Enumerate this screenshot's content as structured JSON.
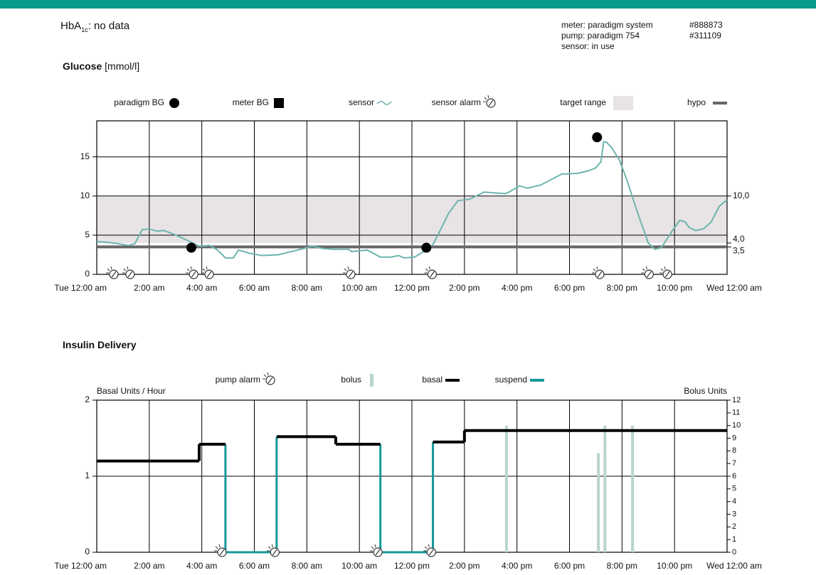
{
  "header": {
    "hba1c_main": "HbA",
    "hba1c_sub": "1c",
    "hba1c_value": ": no data",
    "devices": [
      {
        "label": "meter: paradigm system",
        "id": "#888873"
      },
      {
        "label": "pump: paradigm 754",
        "id": "#311109"
      },
      {
        "label": "sensor: in use"
      }
    ]
  },
  "chart_data": [
    {
      "type": "glucose",
      "title": "Glucose",
      "unit": "[mmol/l]",
      "grid": true,
      "xlim": [
        0,
        24
      ],
      "xticks": [
        {
          "value": 0,
          "label": "Tue 12:00 am"
        },
        {
          "value": 2,
          "label": "2:00 am"
        },
        {
          "value": 4,
          "label": "4:00 am"
        },
        {
          "value": 6,
          "label": "6:00 am"
        },
        {
          "value": 8,
          "label": "8:00 am"
        },
        {
          "value": 10,
          "label": "10:00 am"
        },
        {
          "value": 12,
          "label": "12:00 pm"
        },
        {
          "value": 14,
          "label": "2:00 pm"
        },
        {
          "value": 16,
          "label": "4:00 pm"
        },
        {
          "value": 18,
          "label": "6:00 pm"
        },
        {
          "value": 20,
          "label": "8:00 pm"
        },
        {
          "value": 22,
          "label": "10:00 pm"
        },
        {
          "value": 24,
          "label": "Wed 12:00 am"
        }
      ],
      "ylim": [
        0,
        19.6
      ],
      "yticks": [
        0,
        5,
        10,
        15
      ],
      "y2lim": [
        0,
        19.6
      ],
      "y2ticks": [
        {
          "value": 10,
          "label": "10,0"
        },
        {
          "value": 4,
          "label": "4,0"
        },
        {
          "value": 3.5,
          "label": "3,5"
        }
      ],
      "target_range": {
        "name": "target range",
        "range": [
          4,
          10
        ],
        "color": "#e8e3e5"
      },
      "hypo": {
        "name": "hypo",
        "value": 3.5,
        "color": "#666666"
      },
      "series": [
        {
          "name": "paradigm BG",
          "color": "#000000",
          "x": [
            3.6,
            12.55,
            19.05
          ],
          "values": [
            3.4,
            3.4,
            17.5
          ]
        },
        {
          "name": "meter BG",
          "color": "#000000",
          "x": [],
          "values": []
        },
        {
          "name": "sensor",
          "color": "#6cb5ad",
          "x": [
            0,
            0.65,
            1.2,
            1.45,
            1.73,
            2,
            2.3,
            2.55,
            2.95,
            3.35,
            3.9,
            4.3,
            4.6,
            4.9,
            5.2,
            5.4,
            5.8,
            6.3,
            6.9,
            7.4,
            8,
            8.2,
            8.6,
            9,
            9.6,
            9.7,
            10.3,
            10.8,
            11.2,
            11.5,
            11.7,
            12.1,
            12.4,
            12.8,
            13,
            13.4,
            13.75,
            14.2,
            14.75,
            15.55,
            15.7,
            16.1,
            16.4,
            16.9,
            17.7,
            18.3,
            18.7,
            19,
            19.2,
            19.3,
            19.4,
            19.6,
            19.9,
            20.2,
            20.6,
            21,
            21.25,
            21.5,
            21.9,
            22.2,
            22.4,
            22.55,
            22.8,
            23.1,
            23.4,
            23.7,
            24
          ],
          "values": [
            4.2,
            4.0,
            3.7,
            3.9,
            5.7,
            5.8,
            5.5,
            5.6,
            5.1,
            4.5,
            3.6,
            3.7,
            3.1,
            2.1,
            2.1,
            3.1,
            2.7,
            2.4,
            2.5,
            2.9,
            3.4,
            3.6,
            3.3,
            3.2,
            3.2,
            2.9,
            3.1,
            2.2,
            2.2,
            2.4,
            2.1,
            2.2,
            2.8,
            3.8,
            5.1,
            7.8,
            9.4,
            9.6,
            10.5,
            10.3,
            10.5,
            11.3,
            11.0,
            11.4,
            12.8,
            12.9,
            13.2,
            13.6,
            14.4,
            16.9,
            16.9,
            16.2,
            14.6,
            11.9,
            7.8,
            4.0,
            3.2,
            3.4,
            5.5,
            6.9,
            6.7,
            6.0,
            5.6,
            5.8,
            6.7,
            8.7,
            9.5
          ]
        },
        {
          "name": "sensor alarm",
          "color": "#333333",
          "x": [
            0.65,
            1.27,
            3.69,
            4.28,
            9.67,
            12.77,
            19.15,
            21.03,
            21.73
          ]
        }
      ]
    },
    {
      "type": "insulin",
      "title": "Insulin Delivery",
      "ylabel": "Basal Units / Hour",
      "y2label": "Bolus Units",
      "grid": true,
      "xlim": [
        0,
        24
      ],
      "xticks": [
        {
          "value": 0,
          "label": "Tue 12:00 am"
        },
        {
          "value": 2,
          "label": "2:00 am"
        },
        {
          "value": 4,
          "label": "4:00 am"
        },
        {
          "value": 6,
          "label": "6:00 am"
        },
        {
          "value": 8,
          "label": "8:00 am"
        },
        {
          "value": 10,
          "label": "10:00 am"
        },
        {
          "value": 12,
          "label": "12:00 pm"
        },
        {
          "value": 14,
          "label": "2:00 pm"
        },
        {
          "value": 16,
          "label": "4:00 pm"
        },
        {
          "value": 18,
          "label": "6:00 pm"
        },
        {
          "value": 20,
          "label": "8:00 pm"
        },
        {
          "value": 22,
          "label": "10:00 pm"
        },
        {
          "value": 24,
          "label": "Wed 12:00 am"
        }
      ],
      "ylim": [
        0,
        2
      ],
      "yticks": [
        0,
        1,
        2
      ],
      "y2lim": [
        0,
        12
      ],
      "y2ticks": [
        0,
        1,
        2,
        3,
        4,
        5,
        6,
        7,
        8,
        9,
        10,
        11,
        12
      ],
      "series": [
        {
          "name": "pump alarm",
          "color": "#333333",
          "x": [
            4.77,
            6.78,
            10.7,
            12.74
          ]
        },
        {
          "name": "bolus",
          "color": "#b9d4cf",
          "axis": "y2",
          "x": [
            15.6,
            19.1,
            19.35,
            20.4
          ],
          "values": [
            10,
            7.8,
            10,
            10
          ]
        },
        {
          "name": "basal",
          "color": "#000000",
          "x_start": [
            0,
            3.9,
            6.85,
            9.1,
            12.8,
            14
          ],
          "x_end": [
            3.9,
            4.9,
            9.1,
            10.8,
            14,
            24
          ],
          "values": [
            1.2,
            1.42,
            1.52,
            1.42,
            1.45,
            1.6
          ]
        },
        {
          "name": "suspend",
          "color": "#16999a",
          "x_start": [
            4.9,
            10.8
          ],
          "x_end": [
            6.85,
            12.8
          ]
        }
      ]
    }
  ]
}
